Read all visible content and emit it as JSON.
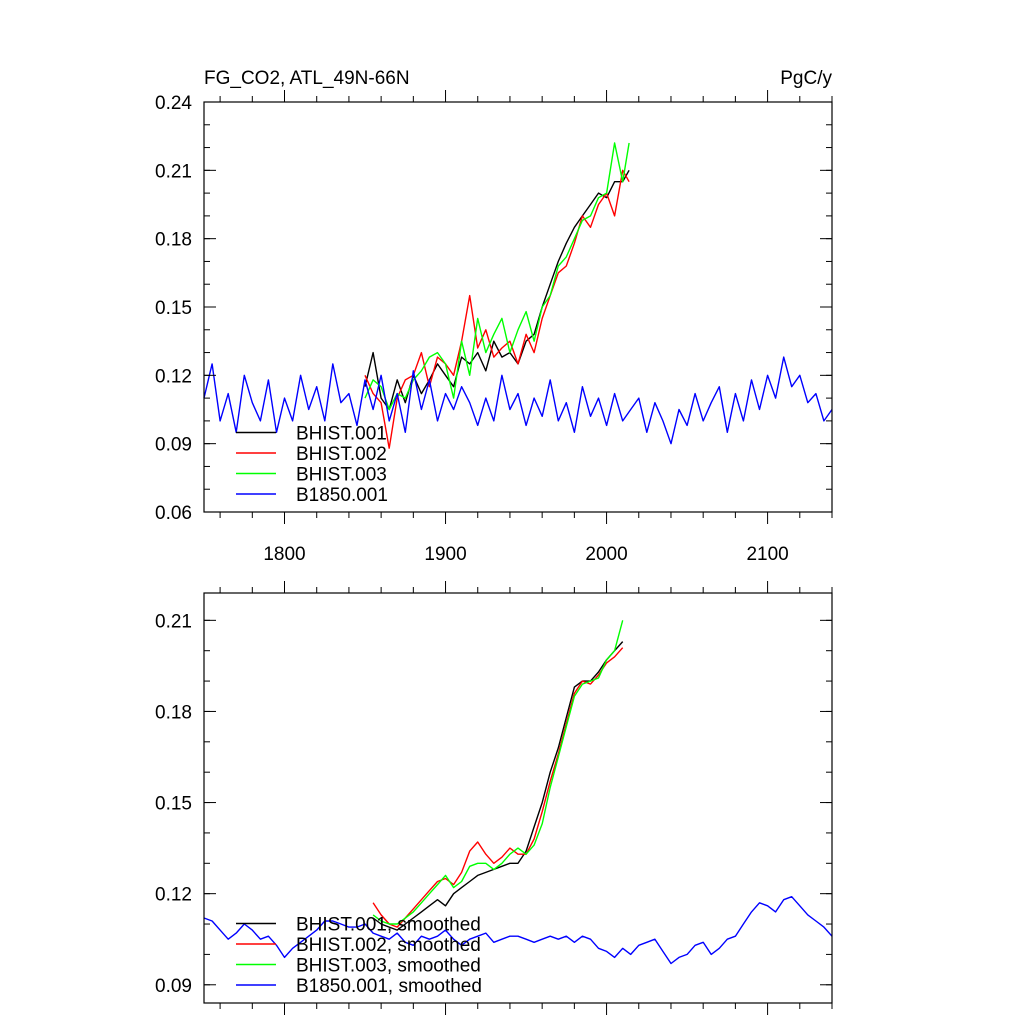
{
  "chart_data": [
    {
      "type": "line",
      "title": "FG_CO2, ATL_49N-66N",
      "units": "PgC/y",
      "xlabel": "",
      "ylabel": "",
      "xlim": [
        1750,
        2140
      ],
      "ylim": [
        0.06,
        0.24
      ],
      "yticks": [
        0.06,
        0.09,
        0.12,
        0.15,
        0.18,
        0.21,
        0.24
      ],
      "ytick_labels": [
        "0.06",
        "0.09",
        "0.12",
        "0.15",
        "0.18",
        "0.21",
        "0.24"
      ],
      "xticks": [
        1800,
        1900,
        2000,
        2100
      ],
      "xtick_labels": [
        "1800",
        "1900",
        "2000",
        "2100"
      ],
      "legend_position": "bottom-left",
      "grid": false,
      "series": [
        {
          "name": "BHIST.001",
          "color": "#000000",
          "x": [
            1850,
            1855,
            1860,
            1865,
            1870,
            1875,
            1880,
            1885,
            1890,
            1895,
            1900,
            1905,
            1910,
            1915,
            1920,
            1925,
            1930,
            1935,
            1940,
            1945,
            1950,
            1955,
            1960,
            1965,
            1970,
            1975,
            1980,
            1985,
            1990,
            1995,
            2000,
            2005,
            2010,
            2014
          ],
          "y": [
            0.115,
            0.13,
            0.11,
            0.105,
            0.118,
            0.108,
            0.12,
            0.112,
            0.118,
            0.125,
            0.12,
            0.115,
            0.128,
            0.125,
            0.13,
            0.122,
            0.135,
            0.128,
            0.13,
            0.125,
            0.135,
            0.138,
            0.15,
            0.16,
            0.17,
            0.178,
            0.185,
            0.19,
            0.195,
            0.2,
            0.198,
            0.205,
            0.205,
            0.21
          ]
        },
        {
          "name": "BHIST.002",
          "color": "#ff0000",
          "x": [
            1850,
            1855,
            1860,
            1865,
            1870,
            1875,
            1880,
            1885,
            1890,
            1895,
            1900,
            1905,
            1910,
            1915,
            1920,
            1925,
            1930,
            1935,
            1940,
            1945,
            1950,
            1955,
            1960,
            1965,
            1970,
            1975,
            1980,
            1985,
            1990,
            1995,
            2000,
            2005,
            2010,
            2014
          ],
          "y": [
            0.12,
            0.112,
            0.108,
            0.088,
            0.11,
            0.118,
            0.12,
            0.13,
            0.115,
            0.128,
            0.125,
            0.12,
            0.135,
            0.155,
            0.132,
            0.14,
            0.128,
            0.132,
            0.135,
            0.125,
            0.138,
            0.13,
            0.145,
            0.155,
            0.165,
            0.168,
            0.178,
            0.19,
            0.185,
            0.195,
            0.2,
            0.19,
            0.21,
            0.205
          ]
        },
        {
          "name": "BHIST.003",
          "color": "#00ff00",
          "x": [
            1850,
            1855,
            1860,
            1865,
            1870,
            1875,
            1880,
            1885,
            1890,
            1895,
            1900,
            1905,
            1910,
            1915,
            1920,
            1925,
            1930,
            1935,
            1940,
            1945,
            1950,
            1955,
            1960,
            1965,
            1970,
            1975,
            1980,
            1985,
            1990,
            1995,
            2000,
            2005,
            2010,
            2014
          ],
          "y": [
            0.11,
            0.118,
            0.115,
            0.105,
            0.112,
            0.11,
            0.118,
            0.122,
            0.128,
            0.13,
            0.125,
            0.11,
            0.135,
            0.12,
            0.145,
            0.13,
            0.138,
            0.145,
            0.13,
            0.14,
            0.148,
            0.135,
            0.15,
            0.155,
            0.168,
            0.172,
            0.18,
            0.188,
            0.19,
            0.198,
            0.2,
            0.222,
            0.205,
            0.222
          ]
        },
        {
          "name": "B1850.001",
          "color": "#0000ff",
          "x": [
            1750,
            1755,
            1760,
            1765,
            1770,
            1775,
            1780,
            1785,
            1790,
            1795,
            1800,
            1805,
            1810,
            1815,
            1820,
            1825,
            1830,
            1835,
            1840,
            1845,
            1850,
            1855,
            1860,
            1865,
            1870,
            1875,
            1880,
            1885,
            1890,
            1895,
            1900,
            1905,
            1910,
            1915,
            1920,
            1925,
            1930,
            1935,
            1940,
            1945,
            1950,
            1955,
            1960,
            1965,
            1970,
            1975,
            1980,
            1985,
            1990,
            1995,
            2000,
            2005,
            2010,
            2015,
            2020,
            2025,
            2030,
            2035,
            2040,
            2045,
            2050,
            2055,
            2060,
            2065,
            2070,
            2075,
            2080,
            2085,
            2090,
            2095,
            2100,
            2105,
            2110,
            2115,
            2120,
            2125,
            2130,
            2135,
            2140
          ],
          "y": [
            0.11,
            0.125,
            0.1,
            0.112,
            0.095,
            0.12,
            0.108,
            0.1,
            0.118,
            0.095,
            0.11,
            0.1,
            0.12,
            0.105,
            0.115,
            0.1,
            0.125,
            0.108,
            0.112,
            0.098,
            0.118,
            0.105,
            0.12,
            0.1,
            0.112,
            0.095,
            0.122,
            0.105,
            0.118,
            0.1,
            0.112,
            0.105,
            0.115,
            0.108,
            0.098,
            0.11,
            0.1,
            0.12,
            0.105,
            0.112,
            0.098,
            0.11,
            0.102,
            0.118,
            0.1,
            0.108,
            0.095,
            0.115,
            0.102,
            0.11,
            0.098,
            0.112,
            0.1,
            0.105,
            0.11,
            0.095,
            0.108,
            0.1,
            0.09,
            0.105,
            0.098,
            0.112,
            0.1,
            0.108,
            0.115,
            0.095,
            0.112,
            0.1,
            0.118,
            0.105,
            0.12,
            0.11,
            0.128,
            0.115,
            0.12,
            0.108,
            0.112,
            0.1,
            0.105
          ]
        }
      ]
    },
    {
      "type": "line",
      "title": "",
      "xlabel": "",
      "ylabel": "",
      "xlim": [
        1750,
        2140
      ],
      "ylim": [
        0.084,
        0.219
      ],
      "yticks": [
        0.09,
        0.12,
        0.15,
        0.18,
        0.21
      ],
      "ytick_labels": [
        "0.09",
        "0.12",
        "0.15",
        "0.18",
        "0.21"
      ],
      "xticks": [
        1800,
        1900,
        2000,
        2100
      ],
      "xtick_labels": [],
      "legend_position": "bottom-left",
      "grid": false,
      "series": [
        {
          "name": "BHIST.001, smoothed",
          "color": "#000000",
          "x": [
            1855,
            1860,
            1865,
            1870,
            1875,
            1880,
            1885,
            1890,
            1895,
            1900,
            1905,
            1910,
            1915,
            1920,
            1925,
            1930,
            1935,
            1940,
            1945,
            1950,
            1955,
            1960,
            1965,
            1970,
            1975,
            1980,
            1985,
            1990,
            1995,
            2000,
            2005,
            2010
          ],
          "y": [
            0.112,
            0.11,
            0.109,
            0.108,
            0.11,
            0.112,
            0.114,
            0.116,
            0.118,
            0.116,
            0.12,
            0.122,
            0.124,
            0.126,
            0.127,
            0.128,
            0.129,
            0.13,
            0.13,
            0.134,
            0.142,
            0.15,
            0.16,
            0.168,
            0.178,
            0.188,
            0.19,
            0.19,
            0.193,
            0.197,
            0.2,
            0.203
          ]
        },
        {
          "name": "BHIST.002, smoothed",
          "color": "#ff0000",
          "x": [
            1855,
            1860,
            1865,
            1870,
            1875,
            1880,
            1885,
            1890,
            1895,
            1900,
            1905,
            1910,
            1915,
            1920,
            1925,
            1930,
            1935,
            1940,
            1945,
            1950,
            1955,
            1960,
            1965,
            1970,
            1975,
            1980,
            1985,
            1990,
            1995,
            2000,
            2005,
            2010
          ],
          "y": [
            0.117,
            0.113,
            0.11,
            0.109,
            0.112,
            0.115,
            0.118,
            0.121,
            0.124,
            0.125,
            0.123,
            0.127,
            0.134,
            0.137,
            0.133,
            0.13,
            0.132,
            0.135,
            0.133,
            0.133,
            0.138,
            0.147,
            0.157,
            0.166,
            0.176,
            0.186,
            0.19,
            0.189,
            0.192,
            0.196,
            0.198,
            0.201
          ]
        },
        {
          "name": "BHIST.003, smoothed",
          "color": "#00ff00",
          "x": [
            1855,
            1860,
            1865,
            1870,
            1875,
            1880,
            1885,
            1890,
            1895,
            1900,
            1905,
            1910,
            1915,
            1920,
            1925,
            1930,
            1935,
            1940,
            1945,
            1950,
            1955,
            1960,
            1965,
            1970,
            1975,
            1980,
            1985,
            1990,
            1995,
            2000,
            2005,
            2010
          ],
          "y": [
            0.113,
            0.111,
            0.11,
            0.11,
            0.112,
            0.114,
            0.117,
            0.12,
            0.123,
            0.126,
            0.122,
            0.124,
            0.129,
            0.13,
            0.13,
            0.128,
            0.13,
            0.133,
            0.135,
            0.133,
            0.136,
            0.143,
            0.155,
            0.165,
            0.175,
            0.185,
            0.189,
            0.19,
            0.191,
            0.197,
            0.2,
            0.21
          ]
        },
        {
          "name": "B1850.001, smoothed",
          "color": "#0000ff",
          "x": [
            1750,
            1755,
            1760,
            1765,
            1770,
            1775,
            1780,
            1785,
            1790,
            1795,
            1800,
            1805,
            1810,
            1815,
            1820,
            1825,
            1830,
            1835,
            1840,
            1845,
            1850,
            1855,
            1860,
            1865,
            1870,
            1875,
            1880,
            1885,
            1890,
            1895,
            1900,
            1905,
            1910,
            1915,
            1920,
            1925,
            1930,
            1935,
            1940,
            1945,
            1950,
            1955,
            1960,
            1965,
            1970,
            1975,
            1980,
            1985,
            1990,
            1995,
            2000,
            2005,
            2010,
            2015,
            2020,
            2025,
            2030,
            2035,
            2040,
            2045,
            2050,
            2055,
            2060,
            2065,
            2070,
            2075,
            2080,
            2085,
            2090,
            2095,
            2100,
            2105,
            2110,
            2115,
            2120,
            2125,
            2130,
            2135,
            2140
          ],
          "y": [
            0.112,
            0.111,
            0.108,
            0.105,
            0.107,
            0.11,
            0.108,
            0.105,
            0.106,
            0.103,
            0.099,
            0.102,
            0.104,
            0.106,
            0.108,
            0.111,
            0.111,
            0.11,
            0.109,
            0.109,
            0.11,
            0.107,
            0.106,
            0.105,
            0.107,
            0.104,
            0.103,
            0.106,
            0.105,
            0.106,
            0.108,
            0.105,
            0.103,
            0.105,
            0.106,
            0.107,
            0.104,
            0.105,
            0.106,
            0.106,
            0.105,
            0.104,
            0.105,
            0.106,
            0.105,
            0.106,
            0.104,
            0.106,
            0.105,
            0.102,
            0.101,
            0.099,
            0.102,
            0.1,
            0.103,
            0.104,
            0.105,
            0.101,
            0.097,
            0.099,
            0.1,
            0.103,
            0.104,
            0.1,
            0.102,
            0.105,
            0.106,
            0.11,
            0.114,
            0.117,
            0.116,
            0.114,
            0.118,
            0.119,
            0.116,
            0.113,
            0.111,
            0.109,
            0.106
          ]
        }
      ]
    }
  ]
}
